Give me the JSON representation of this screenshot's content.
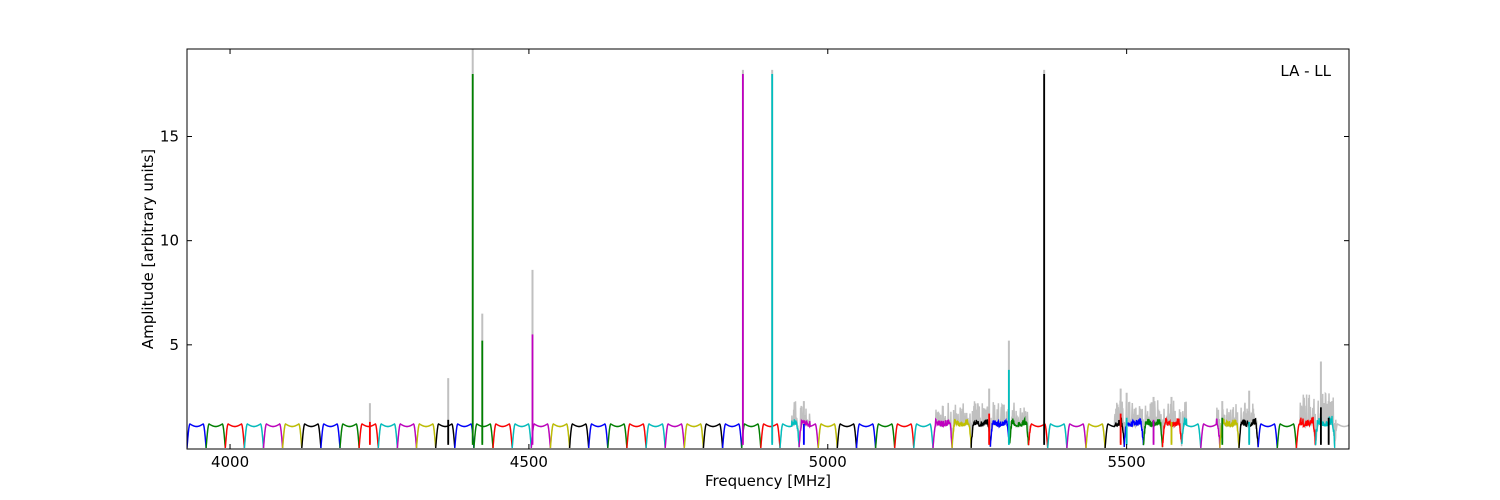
{
  "chart_data": {
    "type": "line",
    "title": "",
    "xlabel": "Frequency [MHz]",
    "ylabel": "Amplitude [arbitrary units]",
    "xlim": [
      3928,
      5872
    ],
    "ylim": [
      0,
      19.2
    ],
    "x_ticks": [
      4000,
      4500,
      5000,
      5500
    ],
    "y_ticks": [
      5,
      10,
      15
    ],
    "grid": false,
    "legend_placement": "top-right",
    "annotation": "LA - LL",
    "band": {
      "start": 3928,
      "width": 32,
      "count": 60,
      "notch_width": 5
    },
    "band_colors": [
      "#0000ff",
      "#008000",
      "#ff0000",
      "#00bfbf",
      "#bf00bf",
      "#bfbf00",
      "#000000"
    ],
    "raw_color": "#c0c0c0",
    "spikes": [
      {
        "x": 4234,
        "raw": 2.2,
        "flagged": 1.3,
        "color": "#ff0000"
      },
      {
        "x": 4365,
        "raw": 3.4,
        "flagged": 1.4,
        "color": "#000000"
      },
      {
        "x": 4406,
        "raw": 19.2,
        "flagged": 18.0,
        "color": "#008000"
      },
      {
        "x": 4422,
        "raw": 6.5,
        "flagged": 5.2,
        "color": "#008000"
      },
      {
        "x": 4506,
        "raw": 8.6,
        "flagged": 5.5,
        "color": "#bf00bf"
      },
      {
        "x": 4858,
        "raw": 18.2,
        "flagged": 18.0,
        "color": "#bf00bf"
      },
      {
        "x": 4907,
        "raw": 18.2,
        "flagged": 18.0,
        "color": "#00bfbf"
      },
      {
        "x": 4960,
        "raw": 2.3,
        "flagged": 1.2,
        "color": "#0000ff"
      },
      {
        "x": 5270,
        "raw": 2.9,
        "flagged": 1.7,
        "color": "#ff0000"
      },
      {
        "x": 5303,
        "raw": 5.2,
        "flagged": 3.8,
        "color": "#00bfbf"
      },
      {
        "x": 5362,
        "raw": 18.2,
        "flagged": 18.0,
        "color": "#000000"
      },
      {
        "x": 5490,
        "raw": 2.9,
        "flagged": 1.7,
        "color": "#ff0000"
      },
      {
        "x": 5500,
        "raw": 2.7,
        "flagged": 1.5,
        "color": "#00bfbf"
      },
      {
        "x": 5545,
        "raw": 2.5,
        "flagged": 1.4,
        "color": "#bf00bf"
      },
      {
        "x": 5575,
        "raw": 2.5,
        "flagged": 1.3,
        "color": "#bfbf00"
      },
      {
        "x": 5660,
        "raw": 2.3,
        "flagged": 1.5,
        "color": "#008000"
      },
      {
        "x": 5705,
        "raw": 2.8,
        "flagged": 1.3,
        "color": "#00bfbf"
      },
      {
        "x": 5825,
        "raw": 4.2,
        "flagged": 2.0,
        "color": "#000000"
      },
      {
        "x": 5838,
        "raw": 2.3,
        "flagged": 1.5,
        "color": "#000000"
      }
    ],
    "noise_regions": [
      {
        "from": 4940,
        "to": 4970,
        "level": 0.8
      },
      {
        "from": 5180,
        "to": 5340,
        "level": 0.8
      },
      {
        "from": 5480,
        "to": 5600,
        "level": 0.9
      },
      {
        "from": 5650,
        "to": 5720,
        "level": 0.8
      },
      {
        "from": 5790,
        "to": 5850,
        "level": 1.2
      }
    ]
  }
}
